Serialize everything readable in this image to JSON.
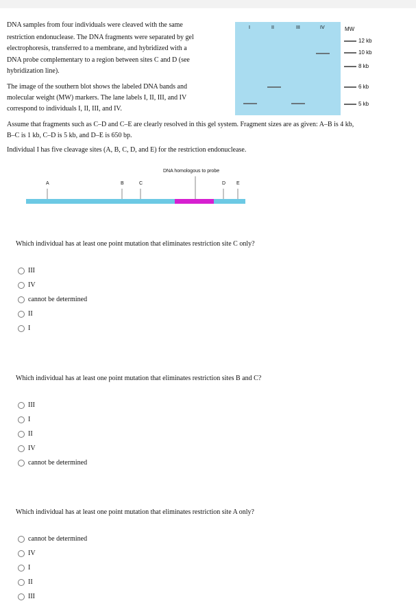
{
  "intro": {
    "paragraph_1": [
      "DNA samples from four individuals were cleaved with the same",
      "restriction endonuclease. The DNA fragments were separated by gel",
      "electrophoresis, transferred to a membrane, and hybridized with a",
      "DNA probe complementary to a region between sites C and D (see",
      "hybridization line)."
    ],
    "paragraph_2": [
      "The image of the southern blot shows the labeled DNA bands and",
      "molecular weight (MW) markers. The lane labels I, II, III, and IV",
      "correspond to individuals I, II, III, and IV."
    ],
    "paragraph_3": [
      "Assume that fragments such as C–D and C–E are clearly resolved in this gel system. Fragment sizes are as given: A–B is 4 kb,",
      "B–C is 1 kb, C–D is 5 kb, and D–E is 650 bp."
    ],
    "paragraph_4": "Individual I has five cleavage sites (A, B, C, D, and E) for the restriction endonuclease."
  },
  "gel": {
    "lane_labels": [
      "I",
      "II",
      "III",
      "IV"
    ],
    "marker_label": "MW",
    "markers": [
      "12 kb",
      "10 kb",
      "8 kb",
      "6 kb",
      "5 kb"
    ]
  },
  "map": {
    "probe_label": "DNA homologous to probe",
    "sites": [
      "A",
      "B",
      "C",
      "D",
      "E"
    ]
  },
  "questions": [
    {
      "text": "Which individual has at least one point mutation that eliminates restriction site C only?",
      "options": [
        "III",
        "IV",
        "cannot be determined",
        "II",
        "I"
      ]
    },
    {
      "text": "Which individual has at least one point mutation that eliminates restriction sites B and C?",
      "options": [
        "III",
        "I",
        "II",
        "IV",
        "cannot be determined"
      ]
    },
    {
      "text": "Which individual has at least one point mutation that eliminates restriction site A only?",
      "options": [
        "cannot be determined",
        "IV",
        "I",
        "II",
        "III"
      ]
    }
  ]
}
